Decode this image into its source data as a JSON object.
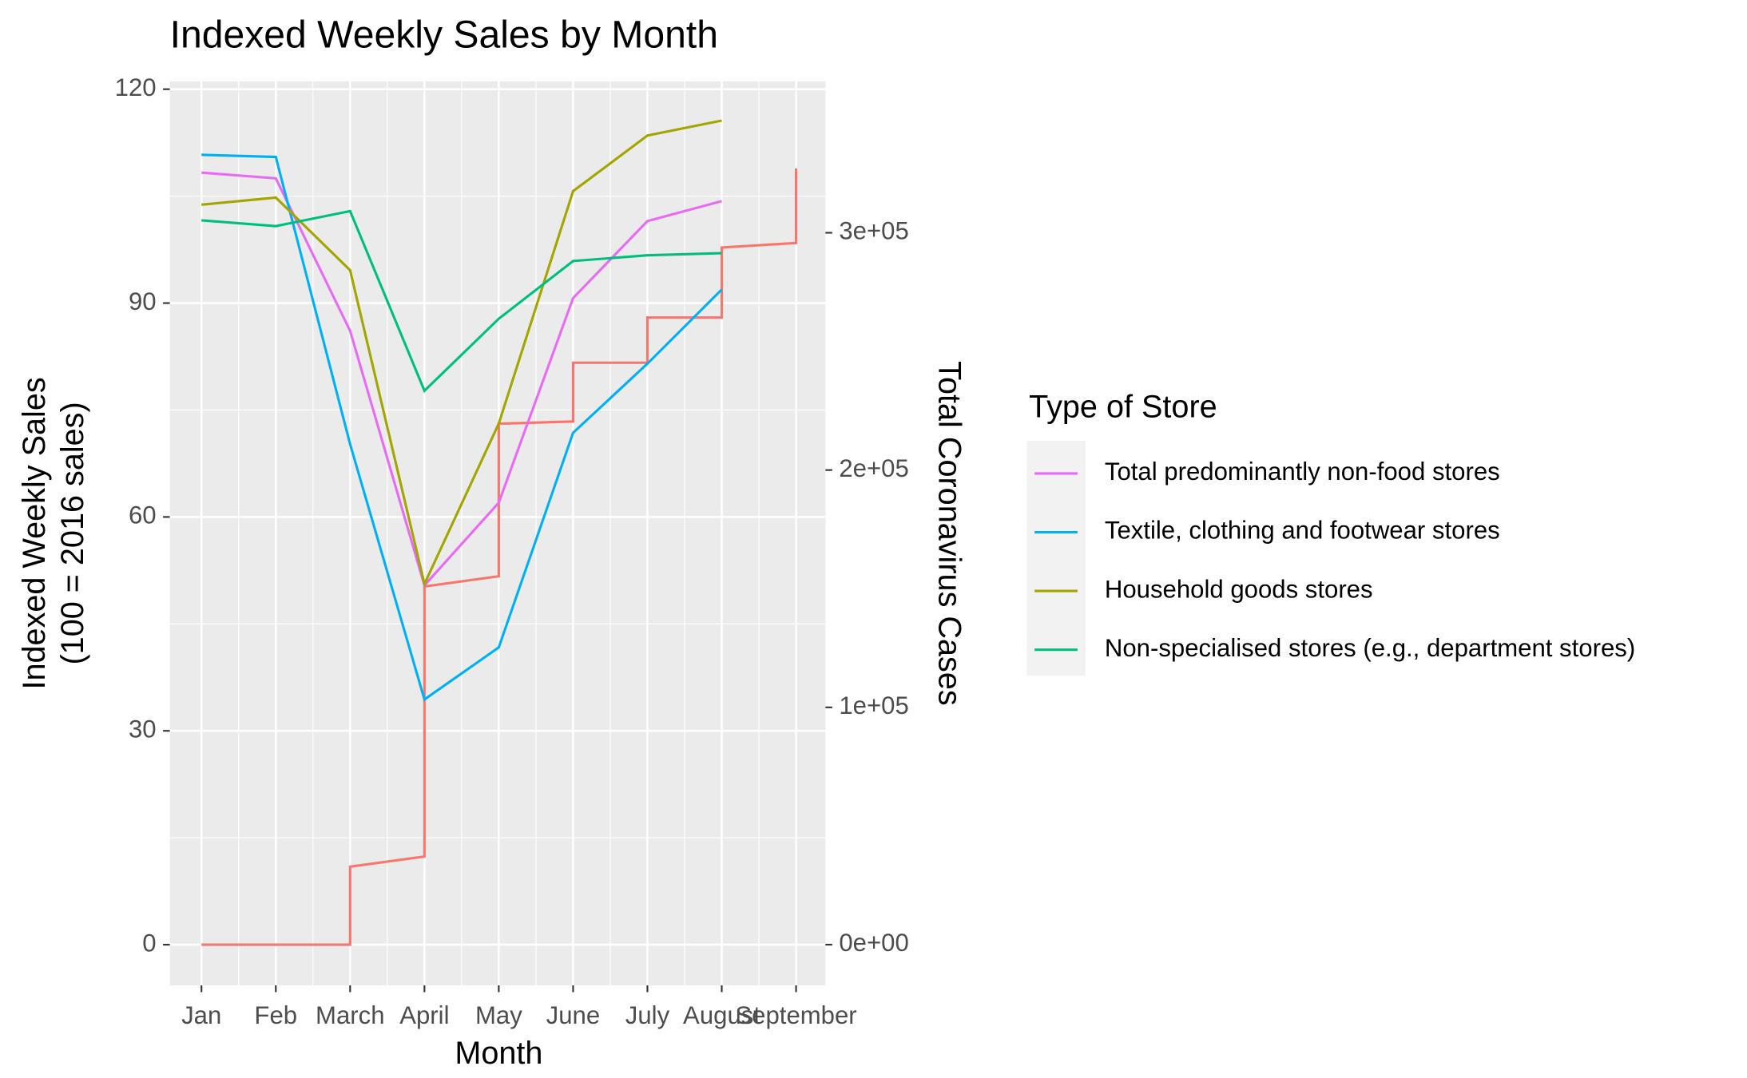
{
  "chart_data": {
    "type": "line",
    "title": "Indexed Weekly Sales by Month",
    "xlabel": "Month",
    "ylabel": [
      "Indexed Weekly Sales",
      "(100 = 2016 sales)"
    ],
    "y2label": "Total Coronavirus Cases",
    "legend_title": "Type of Store",
    "legend_position": "right",
    "grid": true,
    "categories": [
      "Jan",
      "Feb",
      "March",
      "April",
      "May",
      "June",
      "July",
      "August",
      "September"
    ],
    "ylim": [
      -5.7,
      121.1
    ],
    "yticks": [
      0,
      30,
      60,
      90,
      120
    ],
    "y2lim": [
      -17143,
      363810
    ],
    "y2ticks": [
      {
        "value": 0,
        "label": "0e+00"
      },
      {
        "value": 100000,
        "label": "1e+05"
      },
      {
        "value": 200000,
        "label": "2e+05"
      },
      {
        "value": 300000,
        "label": "3e+05"
      }
    ],
    "series": [
      {
        "name": "Total predominantly non-food stores",
        "color": "#e76bf3",
        "values": [
          108.3,
          107.5,
          86.1,
          50.4,
          62.0,
          90.7,
          101.5,
          104.3,
          null
        ]
      },
      {
        "name": "Textile, clothing and footwear stores",
        "color": "#00b0f6",
        "values": [
          110.8,
          110.5,
          70.2,
          34.4,
          41.7,
          71.8,
          81.5,
          91.9,
          null
        ]
      },
      {
        "name": "Household goods stores",
        "color": "#a3a500",
        "values": [
          103.8,
          104.8,
          94.6,
          50.6,
          73.1,
          105.7,
          113.5,
          115.6,
          null
        ]
      },
      {
        "name": "Non-specialised stores (e.g., department stores)",
        "color": "#00bf7d",
        "values": [
          101.6,
          100.8,
          102.9,
          77.7,
          87.8,
          95.9,
          96.7,
          97.0,
          null
        ]
      }
    ],
    "cases": {
      "color": "#f8766d",
      "axis": "y2",
      "x": [
        "Jan",
        "March",
        "March",
        "April",
        "April",
        "May",
        "May",
        "June",
        "June",
        "July",
        "July",
        "August",
        "August",
        "September",
        "September"
      ],
      "values": [
        0,
        0,
        32857,
        37143,
        150952,
        155238,
        219524,
        220476,
        245238,
        245238,
        264286,
        264286,
        293810,
        295714,
        327143
      ]
    }
  }
}
